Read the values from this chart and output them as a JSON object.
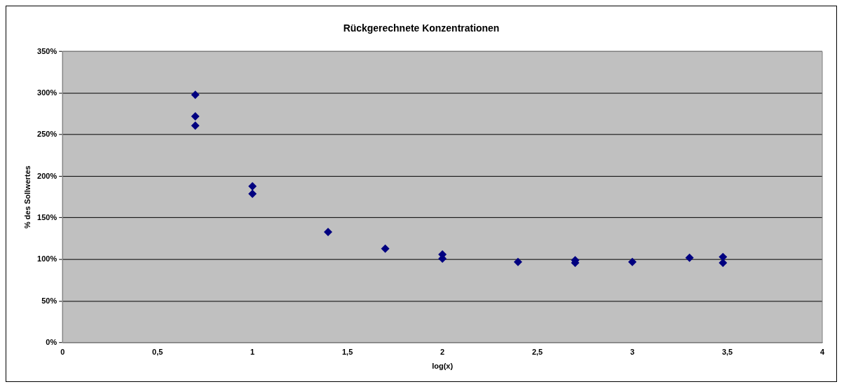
{
  "chart_data": {
    "type": "scatter",
    "title": "Rückgerechnete Konzentrationen",
    "xlabel": "log(x)",
    "ylabel": "% des Sollwertes",
    "x": [
      0.699,
      0.699,
      0.699,
      1,
      1,
      1.398,
      1.699,
      2,
      2,
      2.398,
      2.699,
      2.699,
      3,
      3.301,
      3.477,
      3.477
    ],
    "series": [
      {
        "color": "#000080",
        "values": [
          298,
          272,
          261,
          188,
          179,
          133,
          113,
          106,
          101,
          97,
          99,
          96,
          97,
          102,
          103,
          96
        ]
      }
    ],
    "xlim": [
      0,
      4
    ],
    "ylim": [
      0,
      350
    ],
    "xticks": [
      0,
      {
        "value": 0.5,
        "label": "0,5"
      },
      1,
      {
        "value": 1.5,
        "label": "1,5"
      },
      2,
      {
        "value": 2.5,
        "label": "2,5"
      },
      3,
      {
        "value": 3.5,
        "label": "3,5"
      },
      4
    ],
    "yticks": [
      {
        "value": 0,
        "label": "0%"
      },
      {
        "value": 50,
        "label": "50%"
      },
      {
        "value": 100,
        "label": "100%"
      },
      {
        "value": 150,
        "label": "150%"
      },
      {
        "value": 200,
        "label": "200%"
      },
      {
        "value": 250,
        "label": "250%"
      },
      {
        "value": 300,
        "label": "300%"
      },
      {
        "value": 350,
        "label": "350%"
      }
    ],
    "grid": "y",
    "marker": "diamond",
    "legend": false
  }
}
